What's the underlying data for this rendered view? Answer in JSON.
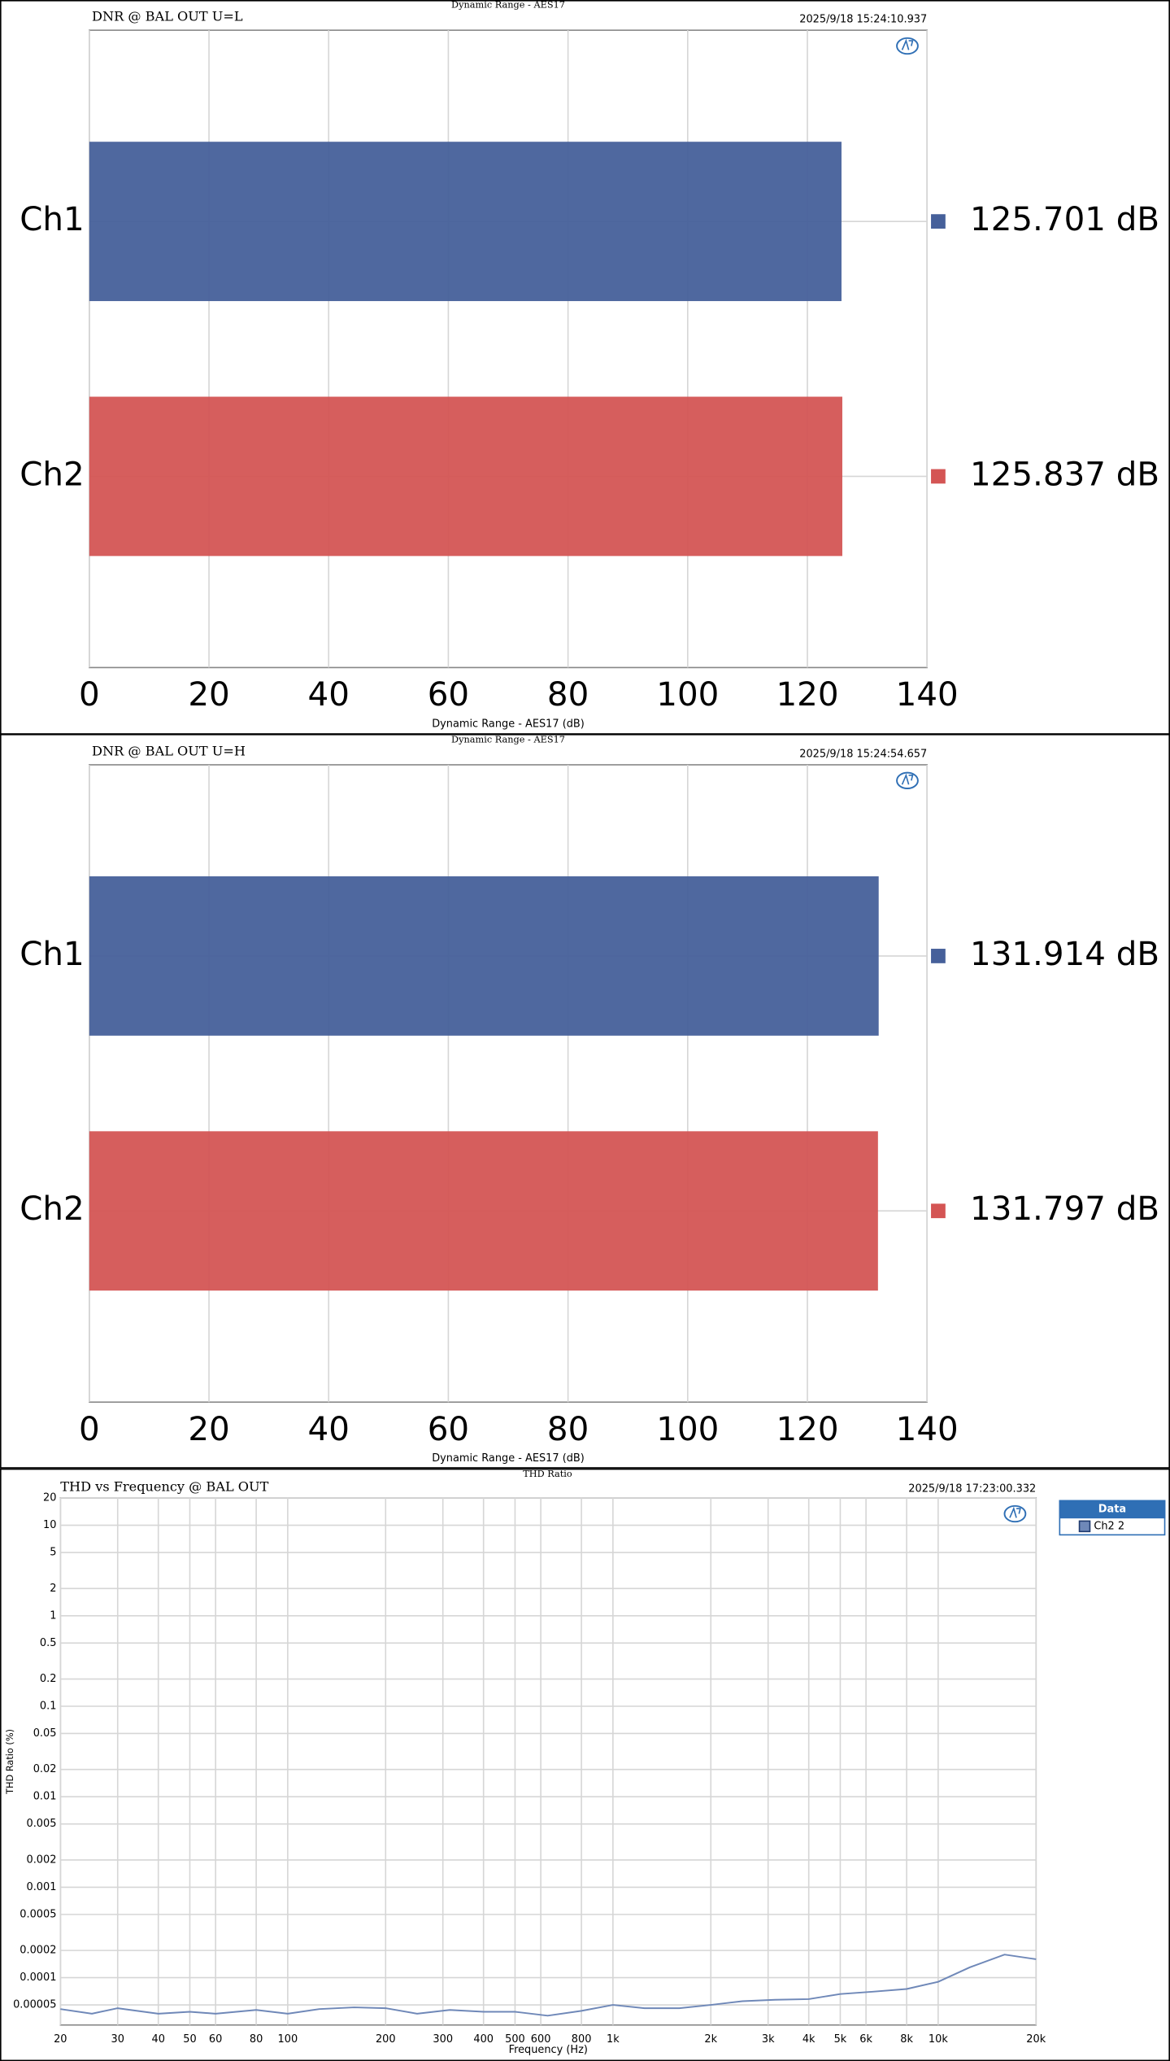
{
  "chart_data": [
    {
      "type": "bar",
      "orientation": "horizontal",
      "title": "Dynamic Range - AES17",
      "subtitle": "DNR @ BAL OUT  U=L",
      "timestamp": "2025/9/18 15:24:10.937",
      "xlabel": "Dynamic Range - AES17 (dB)",
      "categories": [
        "Ch1",
        "Ch2"
      ],
      "values": [
        125.701,
        125.837
      ],
      "value_labels": [
        "125.701 dB",
        "125.837 dB"
      ],
      "colors": [
        "#46609a",
        "#d45554"
      ],
      "xlim": [
        0,
        140
      ],
      "xticks": [
        0,
        20,
        40,
        60,
        80,
        100,
        120,
        140
      ],
      "grid": true
    },
    {
      "type": "bar",
      "orientation": "horizontal",
      "title": "Dynamic Range - AES17",
      "subtitle": "DNR @ BAL OUT  U=H",
      "timestamp": "2025/9/18 15:24:54.657",
      "xlabel": "Dynamic Range - AES17 (dB)",
      "categories": [
        "Ch1",
        "Ch2"
      ],
      "values": [
        131.914,
        131.797
      ],
      "value_labels": [
        "131.914 dB",
        "131.797 dB"
      ],
      "colors": [
        "#46609a",
        "#d45554"
      ],
      "xlim": [
        0,
        140
      ],
      "xticks": [
        0,
        20,
        40,
        60,
        80,
        100,
        120,
        140
      ],
      "grid": true
    },
    {
      "type": "line",
      "title": "THD Ratio",
      "subtitle": "THD vs Frequency  @ BAL OUT",
      "timestamp": "2025/9/18 17:23:00.332",
      "xlabel": "Frequency (Hz)",
      "ylabel": "THD Ratio (%)",
      "log_x": true,
      "log_y": true,
      "grid": true,
      "legend_title": "Data",
      "legend": "right",
      "x": [
        20,
        25,
        30,
        40,
        50,
        60,
        80,
        100,
        125,
        160,
        200,
        250,
        315,
        400,
        500,
        630,
        800,
        1000,
        1250,
        1600,
        2000,
        2500,
        3150,
        4000,
        5000,
        6300,
        8000,
        10000,
        12500,
        16000,
        20000
      ],
      "series": [
        {
          "name": "Ch2 2",
          "color": "#6f88b8",
          "values": [
            4.5e-05,
            4e-05,
            4.6e-05,
            4e-05,
            4.2e-05,
            4e-05,
            4.4e-05,
            4e-05,
            4.5e-05,
            4.7e-05,
            4.6e-05,
            4e-05,
            4.4e-05,
            4.2e-05,
            4.2e-05,
            3.8e-05,
            4.3e-05,
            5e-05,
            4.6e-05,
            4.6e-05,
            5e-05,
            5.5e-05,
            5.7e-05,
            5.8e-05,
            6.6e-05,
            7e-05,
            7.5e-05,
            9e-05,
            0.00013,
            0.00018,
            0.00016
          ]
        }
      ],
      "xlim": [
        20,
        20000
      ],
      "ylim": [
        3e-05,
        20
      ],
      "xticks": [
        20,
        30,
        40,
        50,
        60,
        80,
        100,
        200,
        300,
        400,
        500,
        600,
        800,
        {
          "value": 1000,
          "label": "1k"
        },
        {
          "value": 2000,
          "label": "2k"
        },
        {
          "value": 3000,
          "label": "3k"
        },
        {
          "value": 4000,
          "label": "4k"
        },
        {
          "value": 5000,
          "label": "5k"
        },
        {
          "value": 6000,
          "label": "6k"
        },
        {
          "value": 8000,
          "label": "8k"
        },
        {
          "value": 10000,
          "label": "10k"
        },
        {
          "value": 20000,
          "label": "20k"
        }
      ],
      "yticks": [
        20,
        10,
        5,
        2,
        1,
        0.5,
        0.2,
        0.1,
        0.05,
        0.02,
        0.01,
        0.005,
        0.002,
        0.001,
        0.0005,
        0.0002,
        0.0001,
        5e-05
      ]
    }
  ]
}
